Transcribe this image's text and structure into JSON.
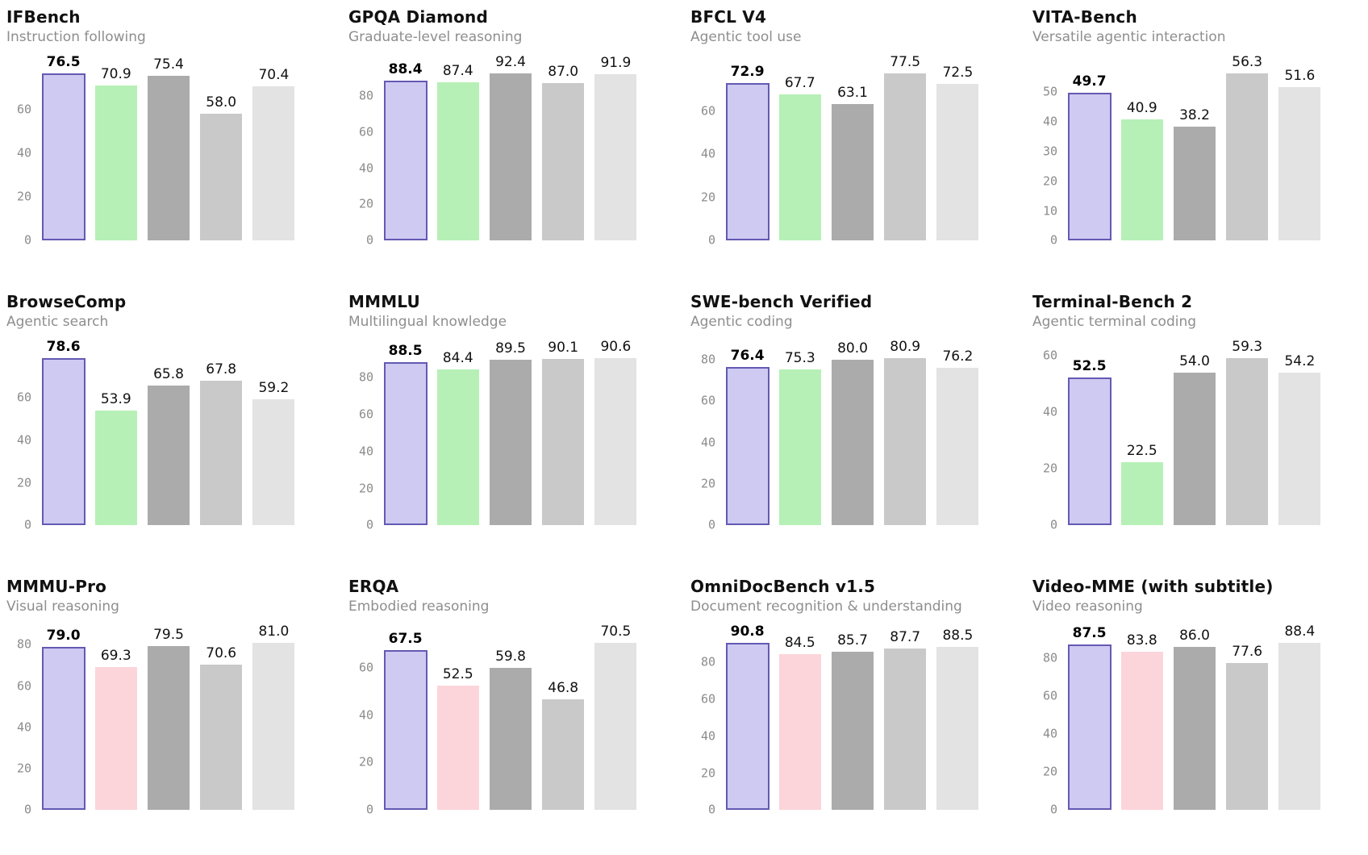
{
  "page": {
    "background": "#ffffff"
  },
  "palette": {
    "primary_fill": "#cecaf2",
    "primary_border": "#6459b3",
    "green": "#b6f0b6",
    "pink": "#fcd5da",
    "gray_dark": "#ababab",
    "gray_mid": "#c9c9c9",
    "gray_light": "#e3e3e3",
    "title_color": "#111111",
    "subtitle_color": "#8e8e8e",
    "tick_color": "#8b8b8b",
    "value_label_color": "#111111"
  },
  "chart_data": [
    {
      "type": "bar",
      "title": "IFBench",
      "subtitle": "Instruction following",
      "values": [
        76.5,
        70.9,
        75.4,
        58.0,
        70.4
      ],
      "value_labels": [
        "76.5",
        "70.9",
        "75.4",
        "58.0",
        "70.4"
      ],
      "yticks": [
        0,
        20,
        40,
        60
      ],
      "ylim": [
        0,
        80.3
      ],
      "highlight_index": 0,
      "second_bar_color": "green",
      "grid": false,
      "legend": false
    },
    {
      "type": "bar",
      "title": "GPQA Diamond",
      "subtitle": "Graduate-level reasoning",
      "values": [
        88.4,
        87.4,
        92.4,
        87.0,
        91.9
      ],
      "value_labels": [
        "88.4",
        "87.4",
        "92.4",
        "87.0",
        "91.9"
      ],
      "yticks": [
        0,
        20,
        40,
        60,
        80
      ],
      "ylim": [
        0,
        97.0
      ],
      "highlight_index": 0,
      "second_bar_color": "green",
      "grid": false,
      "legend": false
    },
    {
      "type": "bar",
      "title": "BFCL V4",
      "subtitle": "Agentic tool use",
      "values": [
        72.9,
        67.7,
        63.1,
        77.5,
        72.5
      ],
      "value_labels": [
        "72.9",
        "67.7",
        "63.1",
        "77.5",
        "72.5"
      ],
      "yticks": [
        0,
        20,
        40,
        60
      ],
      "ylim": [
        0,
        81.4
      ],
      "highlight_index": 0,
      "second_bar_color": "green",
      "grid": false,
      "legend": false
    },
    {
      "type": "bar",
      "title": "VITA-Bench",
      "subtitle": "Versatile agentic interaction",
      "values": [
        49.7,
        40.9,
        38.2,
        56.3,
        51.6
      ],
      "value_labels": [
        "49.7",
        "40.9",
        "38.2",
        "56.3",
        "51.6"
      ],
      "yticks": [
        0,
        10,
        20,
        30,
        40,
        50
      ],
      "ylim": [
        0,
        59.1
      ],
      "highlight_index": 0,
      "second_bar_color": "green",
      "grid": false,
      "legend": false
    },
    {
      "type": "bar",
      "title": "BrowseComp",
      "subtitle": "Agentic search",
      "values": [
        78.6,
        53.9,
        65.8,
        67.8,
        59.2
      ],
      "value_labels": [
        "78.6",
        "53.9",
        "65.8",
        "67.8",
        "59.2"
      ],
      "yticks": [
        0,
        20,
        40,
        60
      ],
      "ylim": [
        0,
        82.5
      ],
      "highlight_index": 0,
      "second_bar_color": "green",
      "grid": false,
      "legend": false
    },
    {
      "type": "bar",
      "title": "MMMLU",
      "subtitle": "Multilingual knowledge",
      "values": [
        88.5,
        84.4,
        89.5,
        90.1,
        90.6
      ],
      "value_labels": [
        "88.5",
        "84.4",
        "89.5",
        "90.1",
        "90.6"
      ],
      "yticks": [
        0,
        20,
        40,
        60,
        80
      ],
      "ylim": [
        0,
        95.1
      ],
      "highlight_index": 0,
      "second_bar_color": "green",
      "grid": false,
      "legend": false
    },
    {
      "type": "bar",
      "title": "SWE-bench Verified",
      "subtitle": "Agentic coding",
      "values": [
        76.4,
        75.3,
        80.0,
        80.9,
        76.2
      ],
      "value_labels": [
        "76.4",
        "75.3",
        "80.0",
        "80.9",
        "76.2"
      ],
      "yticks": [
        0,
        20,
        40,
        60,
        80
      ],
      "ylim": [
        0,
        84.9
      ],
      "highlight_index": 0,
      "second_bar_color": "green",
      "grid": false,
      "legend": false
    },
    {
      "type": "bar",
      "title": "Terminal-Bench 2",
      "subtitle": "Agentic terminal coding",
      "values": [
        52.5,
        22.5,
        54.0,
        59.3,
        54.2
      ],
      "value_labels": [
        "52.5",
        "22.5",
        "54.0",
        "59.3",
        "54.2"
      ],
      "yticks": [
        0,
        20,
        40,
        60
      ],
      "ylim": [
        0,
        62.3
      ],
      "highlight_index": 0,
      "second_bar_color": "green",
      "grid": false,
      "legend": false
    },
    {
      "type": "bar",
      "title": "MMMU-Pro",
      "subtitle": "Visual reasoning",
      "values": [
        79.0,
        69.3,
        79.5,
        70.6,
        81.0
      ],
      "value_labels": [
        "79.0",
        "69.3",
        "79.5",
        "70.6",
        "81.0"
      ],
      "yticks": [
        0,
        20,
        40,
        60,
        80
      ],
      "ylim": [
        0,
        85.1
      ],
      "highlight_index": 0,
      "second_bar_color": "pink",
      "grid": false,
      "legend": false
    },
    {
      "type": "bar",
      "title": "ERQA",
      "subtitle": "Embodied reasoning",
      "values": [
        67.5,
        52.5,
        59.8,
        46.8,
        70.5
      ],
      "value_labels": [
        "67.5",
        "52.5",
        "59.8",
        "46.8",
        "70.5"
      ],
      "yticks": [
        0,
        20,
        40,
        60
      ],
      "ylim": [
        0,
        74.0
      ],
      "highlight_index": 0,
      "second_bar_color": "pink",
      "grid": false,
      "legend": false
    },
    {
      "type": "bar",
      "title": "OmniDocBench v1.5",
      "subtitle": "Document recognition & understanding",
      "values": [
        90.8,
        84.5,
        85.7,
        87.7,
        88.5
      ],
      "value_labels": [
        "90.8",
        "84.5",
        "85.7",
        "87.7",
        "88.5"
      ],
      "yticks": [
        0,
        20,
        40,
        60,
        80
      ],
      "ylim": [
        0,
        95.3
      ],
      "highlight_index": 0,
      "second_bar_color": "pink",
      "grid": false,
      "legend": false
    },
    {
      "type": "bar",
      "title": "Video-MME (with subtitle)",
      "subtitle": "Video reasoning",
      "values": [
        87.5,
        83.8,
        86.0,
        77.6,
        88.4
      ],
      "value_labels": [
        "87.5",
        "83.8",
        "86.0",
        "77.6",
        "88.4"
      ],
      "yticks": [
        0,
        20,
        40,
        60,
        80
      ],
      "ylim": [
        0,
        92.8
      ],
      "highlight_index": 0,
      "second_bar_color": "pink",
      "grid": false,
      "legend": false
    }
  ]
}
